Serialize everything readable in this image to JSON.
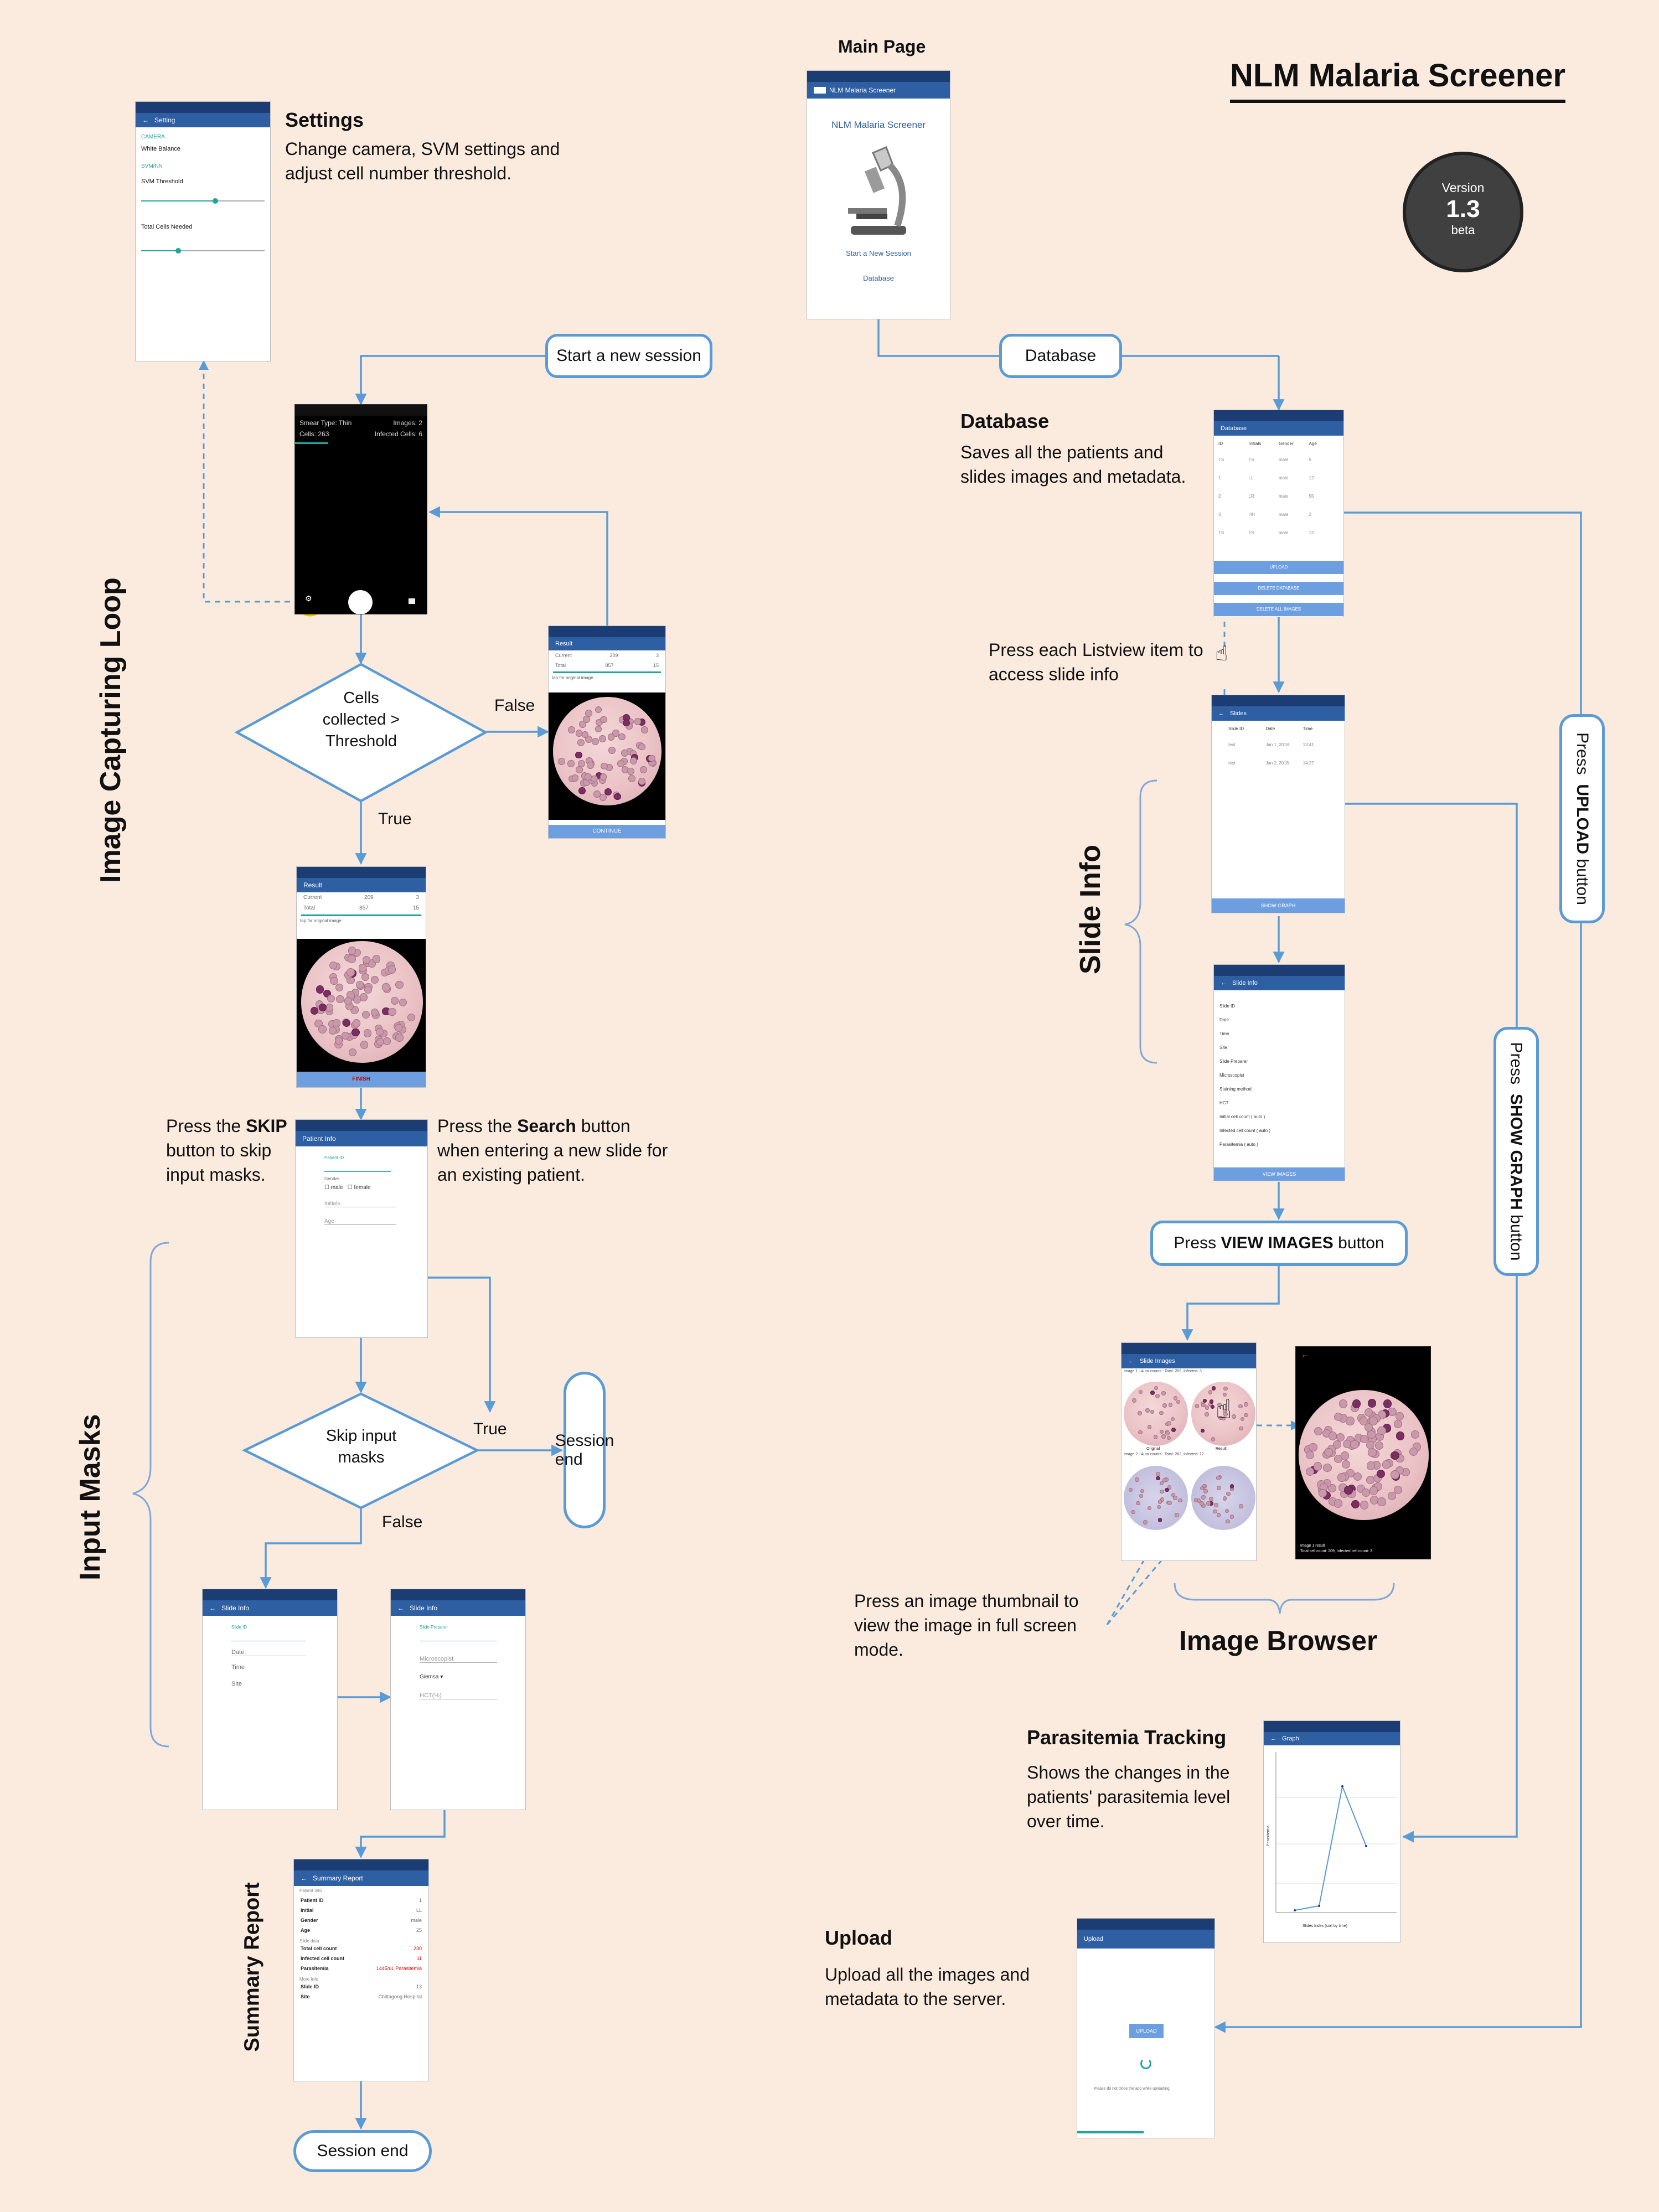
{
  "title": "NLM Malaria Screener",
  "version": {
    "label": "Version",
    "number": "1.3",
    "stage": "beta"
  },
  "colors": {
    "background": "#fbebdf",
    "flow_line": "#5b9bd5",
    "app_bar": "#2e5fa3",
    "button": "#6d9fe0",
    "badge": "#404040"
  },
  "main_page": {
    "caption": "Main Page",
    "app_title": "NLM Malaria Screener",
    "heading": "NLM Malaria Screener",
    "icon": "microscope-icon",
    "start_link": "Start a New Session",
    "database_link": "Database"
  },
  "settings": {
    "title": "Settings",
    "description": "Change camera, SVM settings and adjust cell number threshold.",
    "screen": {
      "app_title": "Setting",
      "camera_header": "CAMERA",
      "white_balance": "White Balance",
      "svm_header": "SVM/NN",
      "svm_threshold": "SVM Threshold",
      "total_cells": "Total Cells Needed"
    }
  },
  "flow_labels": {
    "start_new_session": "Start a new session",
    "database": "Database",
    "cells_decision": "Cells collected > Threshold",
    "false": "False",
    "true": "True",
    "skip_decision": "Skip input masks",
    "session_end": "Session end",
    "press_upload": "Press UPLOAD button",
    "press_upload_pre": "Press ",
    "press_upload_bold": "UPLOAD",
    "press_upload_post": " button",
    "press_show_graph_pre": "Press ",
    "press_show_graph_bold": "SHOW GRAPH",
    "press_show_graph_post": " button",
    "press_view_images_pre": "Press ",
    "press_view_images_bold": "VIEW IMAGES",
    "press_view_images_post": " button"
  },
  "side_titles": {
    "image_capturing_loop": "Image Capturing Loop",
    "input_masks": "Input Masks",
    "summary_report": "Summary Report",
    "slide_info": "Slide Info",
    "image_browser": "Image Browser"
  },
  "camera_screen": {
    "smear_type": "Smear Type: Thin",
    "images": "Images: 2",
    "cells": "Cells: 263",
    "infected": "Infected Cells: 6"
  },
  "result_screen": {
    "app_title": "Result",
    "current_label": "Current",
    "total_label": "Total",
    "current_cells": "209",
    "current_infected": "3",
    "total_cells": "857",
    "total_infected": "15",
    "tap_hint": "tap for original image",
    "continue_button": "CONTINUE",
    "finish_button": "FINISH"
  },
  "patient_info": {
    "app_title": "Patient Info",
    "id_field": "Patient ID",
    "gender": "Gender",
    "male": "male",
    "female": "female",
    "initials": "Initials",
    "age": "Age"
  },
  "notes": {
    "skip_pre": "Press the ",
    "skip_bold": "SKIP",
    "skip_post": " button to skip input masks.",
    "search_pre": "Press the ",
    "search_bold": "Search",
    "search_post": " button when entering a new slide for an existing patient.",
    "listview": "Press each Listview item to access slide info",
    "thumbnail": "Press an image thumbnail to view the image in full screen mode."
  },
  "slide_info_form_1": {
    "app_title": "Slide Info",
    "slide_id": "Slide ID",
    "date": "Date",
    "time": "Time",
    "site": "Site"
  },
  "slide_info_form_2": {
    "app_title": "Slide Info",
    "slide_prep": "Slide Preparer",
    "microscopist": "Microscopist",
    "stain": "Giemsa",
    "hct": "HCT(%)"
  },
  "summary_report": {
    "app_title": "Summary Report",
    "patient_info": "Patient Info",
    "rows": [
      {
        "k": "Patient ID",
        "v": "1"
      },
      {
        "k": "Initial",
        "v": "LL"
      },
      {
        "k": "Gender",
        "v": "male"
      },
      {
        "k": "Age",
        "v": "25"
      }
    ],
    "slide_data": "Slide data",
    "totals": [
      {
        "k": "Total cell count",
        "v": "230"
      },
      {
        "k": "Infected cell count",
        "v": "11"
      },
      {
        "k": "Parasitemia",
        "v": "1445/uL Parasitemia"
      }
    ],
    "more_info": "More Info",
    "more_rows": [
      {
        "k": "Slide ID",
        "v": "13"
      },
      {
        "k": "Site",
        "v": "Chittagong Hospital"
      }
    ]
  },
  "database": {
    "title": "Database",
    "description": "Saves all the patients and slides images and metadata.",
    "screen": {
      "app_title": "Database",
      "columns": [
        "ID",
        "Initials",
        "Gender",
        "Age"
      ],
      "rows": [
        [
          "TS",
          "TS",
          "male",
          "5"
        ],
        [
          "1",
          "LL",
          "male",
          "12"
        ],
        [
          "2",
          "LR",
          "male",
          "55"
        ],
        [
          "3",
          "HH",
          "male",
          "2"
        ],
        [
          "TS",
          "TS",
          "male",
          "12"
        ]
      ],
      "upload": "UPLOAD",
      "delete_database": "DELETE DATABASE",
      "delete_all_images": "DELETE ALL IMAGES"
    }
  },
  "slides_screen": {
    "app_title": "Slides",
    "columns": [
      "Slide ID",
      "Date",
      "Time"
    ],
    "rows": [
      [
        "test",
        "Jan 1, 2018",
        "13:41"
      ],
      [
        "test",
        "Jan 2, 2018",
        "14:27"
      ]
    ],
    "show_graph": "SHOW GRAPH"
  },
  "slide_info_screen": {
    "app_title": "Slide Info",
    "rows": [
      "Slide ID",
      "Date",
      "Time",
      "Site",
      "Slide Preparer",
      "Microscopist",
      "Staining method",
      "HCT",
      "Initial cell count ( auto )",
      "Infected cell count ( auto )",
      "Parasitemia ( auto )"
    ],
    "view_images": "VIEW IMAGES"
  },
  "slide_images_screen": {
    "app_title": "Slide Images",
    "image1_caption": "Image 1 - Auto counts : Total: 209, Infected: 3",
    "image2_caption": "Image 2 - Auto counts : Total: 262, Infected: 12",
    "original": "Original",
    "result": "Result"
  },
  "fullscreen": {
    "caption1": "Image 1 result",
    "caption2": "Total cell count: 209, Infected cell count: 3"
  },
  "parasitemia": {
    "title": "Parasitemia Tracking",
    "description": "Shows the changes in the patients' parasitemia level over time.",
    "screen": {
      "app_title": "Graph",
      "ylabel": "Parasitemia",
      "xlabel": "Slides Index (sort by time)"
    }
  },
  "upload": {
    "title": "Upload",
    "description": "Upload all the images and metadata to the server.",
    "screen": {
      "app_title": "Upload",
      "button": "UPLOAD",
      "note": "Please do not close the app while uploading"
    }
  }
}
